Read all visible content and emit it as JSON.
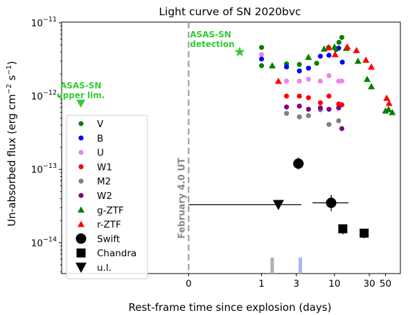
{
  "chart_data": {
    "type": "scatter",
    "title": "Light curve of SN 2020bvc",
    "xlabel": "Rest-frame time since explosion (days)",
    "ylabel_main": "Un-absorbed flux (erg cm",
    "ylabel_exp1": "−2",
    "ylabel_mid": " s",
    "ylabel_exp2": "−1",
    "ylabel_close": ")",
    "x_scale": "symlog",
    "y_scale": "log",
    "ylim": [
      3.8e-15,
      1.02e-11
    ],
    "xlim": [
      -5.5,
      80
    ],
    "x_ticks": [
      {
        "value": 0,
        "label": "0"
      },
      {
        "value": 1,
        "label": "1"
      },
      {
        "value": 3,
        "label": "3"
      },
      {
        "value": 10,
        "label": "10"
      },
      {
        "value": 30,
        "label": "30"
      },
      {
        "value": 50,
        "label": "50"
      }
    ],
    "y_ticks": [
      {
        "value": 1e-14,
        "base": "10",
        "exp": "−14"
      },
      {
        "value": 1e-13,
        "base": "10",
        "exp": "−13"
      },
      {
        "value": 1e-12,
        "base": "10",
        "exp": "−12"
      },
      {
        "value": 1e-11,
        "base": "10",
        "exp": "−11"
      }
    ],
    "vline": {
      "x": 0,
      "label": "February 4.0 UT",
      "color": "#aaaaaa"
    },
    "annotations": [
      {
        "id": "detection",
        "text_lines": [
          "ASAS-SN",
          "detection"
        ],
        "color": "#33cc33"
      },
      {
        "id": "upperlim",
        "text_lines": [
          "ASAS-SN",
          "upper lim."
        ],
        "color": "#33cc33"
      }
    ],
    "asassn_detection": {
      "x": 0.7,
      "y": 4e-12,
      "color": "#33cc33",
      "marker": "star"
    },
    "asassn_upperlim": {
      "x": -3.0,
      "y": 8e-13,
      "color": "#33cc33",
      "marker": "triangle_down"
    },
    "epoch_markers": [
      {
        "x": 1.4,
        "color": "#b0b0b0"
      },
      {
        "x": 3.4,
        "color": "#b0b0ff"
      }
    ],
    "series": [
      {
        "name": "V",
        "color": "#008000",
        "marker": "circle",
        "points": [
          [
            1.0,
            4.6e-12
          ],
          [
            1.0,
            2.6e-12
          ],
          [
            2.2,
            2.75e-12
          ],
          [
            3.3,
            2.7e-12
          ],
          [
            5.7,
            2.8e-12
          ],
          [
            8.3,
            4.6e-12
          ],
          [
            10.5,
            4.3e-12
          ],
          [
            11.5,
            5.4e-12
          ],
          [
            12.6,
            6.3e-12
          ]
        ]
      },
      {
        "name": "B",
        "color": "#0000ff",
        "marker": "circle",
        "points": [
          [
            1.0,
            3.2e-12
          ],
          [
            2.2,
            2.5e-12
          ],
          [
            3.3,
            2.2e-12
          ],
          [
            4.4,
            2.4e-12
          ],
          [
            6.4,
            3.5e-12
          ],
          [
            8.4,
            3.6e-12
          ],
          [
            11.4,
            4.5e-12
          ],
          [
            12.8,
            2.9e-12
          ]
        ]
      },
      {
        "name": "U",
        "color": "#ee82ee",
        "marker": "circle",
        "points": [
          [
            1.0,
            3.7e-12
          ],
          [
            2.2,
            1.6e-12
          ],
          [
            3.3,
            1.6e-12
          ],
          [
            4.4,
            1.7e-12
          ],
          [
            6.4,
            1.6e-12
          ],
          [
            8.4,
            1.9e-12
          ],
          [
            11.4,
            1.6e-12
          ],
          [
            12.6,
            1.6e-12
          ]
        ]
      },
      {
        "name": "W1",
        "color": "#ff0000",
        "marker": "circle",
        "points": [
          [
            2.2,
            1e-12
          ],
          [
            3.3,
            1e-12
          ],
          [
            4.4,
            9.5e-13
          ],
          [
            6.4,
            8.1e-13
          ],
          [
            8.4,
            1e-12
          ],
          [
            11.4,
            7.8e-13
          ],
          [
            12.6,
            7.6e-13
          ]
        ]
      },
      {
        "name": "M2",
        "color": "#808080",
        "marker": "circle",
        "points": [
          [
            2.2,
            5.8e-13
          ],
          [
            3.3,
            5.2e-13
          ],
          [
            4.4,
            5.4e-13
          ],
          [
            6.4,
            6.5e-13
          ],
          [
            8.4,
            4.1e-13
          ],
          [
            11.4,
            4.6e-13
          ]
        ]
      },
      {
        "name": "W2",
        "color": "#800080",
        "marker": "circle",
        "points": [
          [
            2.2,
            7.1e-13
          ],
          [
            3.3,
            7.3e-13
          ],
          [
            4.4,
            6.6e-13
          ],
          [
            6.4,
            6.9e-13
          ],
          [
            8.4,
            6.6e-13
          ],
          [
            11.4,
            6.9e-13
          ],
          [
            12.6,
            3.6e-13
          ]
        ]
      },
      {
        "name": "g-ZTF",
        "color": "#008000",
        "marker": "triangle_up",
        "points": [
          [
            1.4,
            2.6e-12
          ],
          [
            4.4,
            3.4e-12
          ],
          [
            7.2,
            4.4e-12
          ],
          [
            10.0,
            4.7e-12
          ],
          [
            14.5,
            4.5e-12
          ],
          [
            21.0,
            3e-12
          ],
          [
            28.0,
            1.7e-12
          ],
          [
            32.0,
            1.35e-12
          ],
          [
            50.0,
            6.3e-13
          ],
          [
            55.0,
            6.6e-13
          ],
          [
            62.0,
            6e-13
          ]
        ]
      },
      {
        "name": "r-ZTF",
        "color": "#ff0000",
        "marker": "triangle_up",
        "points": [
          [
            1.7,
            1.6e-12
          ],
          [
            8.3,
            4.6e-12
          ],
          [
            10.2,
            3.7e-12
          ],
          [
            15.0,
            4.7e-12
          ],
          [
            20.0,
            4.2e-12
          ],
          [
            27.0,
            3.1e-12
          ],
          [
            32.0,
            2.5e-12
          ],
          [
            52.0,
            9.4e-13
          ],
          [
            56.0,
            8e-13
          ]
        ]
      },
      {
        "name": "Swift",
        "color": "#000000",
        "marker": "circle_big",
        "points": [
          [
            3.2,
            1.2e-13,
            2.7,
            3.8,
            1.45e-13,
            1e-13
          ],
          [
            9.0,
            3.5e-14,
            5.0,
            15.5,
            4.5e-14,
            2.7e-14
          ]
        ]
      },
      {
        "name": "Chandra",
        "color": "#000000",
        "marker": "square",
        "points": [
          [
            13.0,
            1.55e-14,
            null,
            null,
            1.75e-14,
            1.3e-14
          ],
          [
            25.5,
            1.35e-14,
            null,
            null,
            1.55e-14,
            1.15e-14
          ]
        ]
      },
      {
        "name": "u.l.",
        "color": "#000000",
        "marker": "triangle_down_big",
        "points": [
          [
            1.7,
            3.3e-14,
            0.0,
            3.5,
            null,
            null
          ]
        ]
      }
    ],
    "legend_placement": "left"
  }
}
